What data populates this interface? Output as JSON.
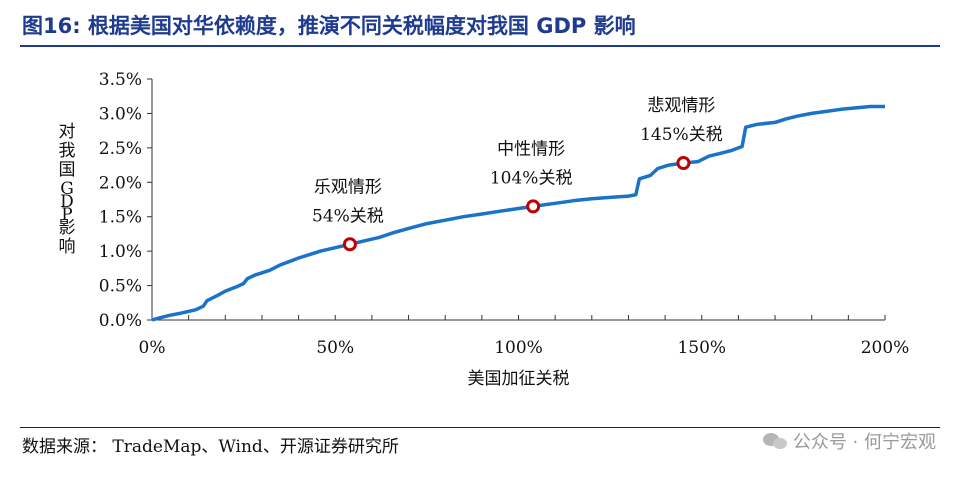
{
  "figure": {
    "title": "图16: 根据美国对华依赖度，推演不同关税幅度对我国 GDP 影响",
    "source": "数据来源： TradeMap、Wind、开源证券研究所",
    "watermark": "公众号 · 何宁宏观"
  },
  "chart_data": {
    "type": "line",
    "xlabel": "美国加征关税",
    "ylabel": "对我国GDP影响",
    "x_ticks": [
      "0%",
      "50%",
      "100%",
      "150%",
      "200%"
    ],
    "y_ticks": [
      "0.0%",
      "0.5%",
      "1.0%",
      "1.5%",
      "2.0%",
      "2.5%",
      "3.0%",
      "3.5%"
    ],
    "xlim": [
      0,
      200
    ],
    "ylim": [
      0,
      3.5
    ],
    "x_unit": "%",
    "y_unit": "%",
    "line_color": "#1a73c8",
    "marker_color": "#c00000",
    "series": [
      {
        "values": [
          [
            0,
            0.0
          ],
          [
            2,
            0.03
          ],
          [
            5,
            0.07
          ],
          [
            8,
            0.1
          ],
          [
            12,
            0.15
          ],
          [
            14,
            0.2
          ],
          [
            15,
            0.28
          ],
          [
            18,
            0.36
          ],
          [
            20,
            0.42
          ],
          [
            23,
            0.48
          ],
          [
            25,
            0.53
          ],
          [
            26,
            0.6
          ],
          [
            28,
            0.65
          ],
          [
            32,
            0.72
          ],
          [
            35,
            0.8
          ],
          [
            38,
            0.86
          ],
          [
            40,
            0.9
          ],
          [
            43,
            0.95
          ],
          [
            46,
            1.0
          ],
          [
            50,
            1.05
          ],
          [
            54,
            1.1
          ],
          [
            58,
            1.15
          ],
          [
            62,
            1.2
          ],
          [
            66,
            1.27
          ],
          [
            70,
            1.33
          ],
          [
            75,
            1.4
          ],
          [
            80,
            1.45
          ],
          [
            85,
            1.5
          ],
          [
            90,
            1.54
          ],
          [
            95,
            1.58
          ],
          [
            100,
            1.62
          ],
          [
            104,
            1.65
          ],
          [
            108,
            1.68
          ],
          [
            112,
            1.71
          ],
          [
            116,
            1.74
          ],
          [
            120,
            1.76
          ],
          [
            125,
            1.78
          ],
          [
            130,
            1.8
          ],
          [
            132,
            1.82
          ],
          [
            133,
            2.05
          ],
          [
            136,
            2.1
          ],
          [
            138,
            2.2
          ],
          [
            141,
            2.25
          ],
          [
            145,
            2.28
          ],
          [
            149,
            2.3
          ],
          [
            152,
            2.38
          ],
          [
            155,
            2.42
          ],
          [
            158,
            2.46
          ],
          [
            161,
            2.52
          ],
          [
            162,
            2.8
          ],
          [
            165,
            2.84
          ],
          [
            170,
            2.87
          ],
          [
            173,
            2.92
          ],
          [
            176,
            2.96
          ],
          [
            180,
            3.0
          ],
          [
            184,
            3.03
          ],
          [
            188,
            3.06
          ],
          [
            192,
            3.08
          ],
          [
            196,
            3.1
          ],
          [
            200,
            3.1
          ]
        ]
      }
    ],
    "markers": [
      {
        "x": 54,
        "y": 1.1,
        "label_line1": "乐观情形",
        "label_line2": "54%关税"
      },
      {
        "x": 104,
        "y": 1.65,
        "label_line1": "中性情形",
        "label_line2": "104%关税"
      },
      {
        "x": 145,
        "y": 2.28,
        "label_line1": "悲观情形",
        "label_line2": "145%关税"
      }
    ]
  }
}
